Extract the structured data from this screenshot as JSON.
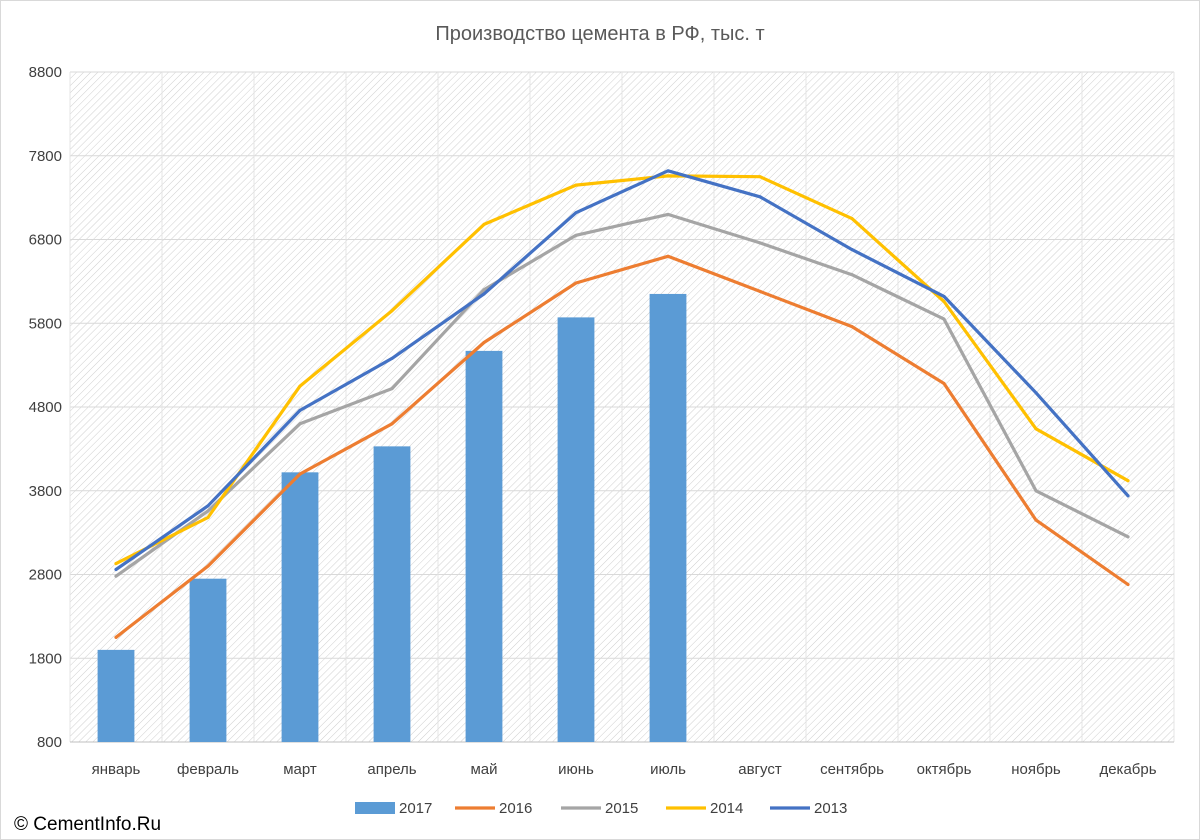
{
  "chart_data": {
    "type": "bar",
    "title": "Производство цемента в РФ, тыс. т",
    "xlabel": "",
    "ylabel": "",
    "ylim": [
      800,
      8800
    ],
    "yticks": [
      800,
      1800,
      2800,
      3800,
      4800,
      5800,
      6800,
      7800,
      8800
    ],
    "categories": [
      "январь",
      "февраль",
      "март",
      "апрель",
      "май",
      "июнь",
      "июль",
      "август",
      "сентябрь",
      "октябрь",
      "ноябрь",
      "декабрь"
    ],
    "grid": true,
    "legend_position": "bottom",
    "series": [
      {
        "name": "2017",
        "kind": "bar",
        "color": "#5B9BD5",
        "values": [
          1900,
          2750,
          4020,
          4330,
          5470,
          5870,
          6150,
          null,
          null,
          null,
          null,
          null
        ]
      },
      {
        "name": "2016",
        "kind": "line",
        "color": "#ED7D31",
        "values": [
          2050,
          2900,
          4000,
          4600,
          5570,
          6280,
          6600,
          6180,
          5760,
          5080,
          3450,
          2680
        ]
      },
      {
        "name": "2015",
        "kind": "line",
        "color": "#A5A5A5",
        "values": [
          2780,
          3560,
          4600,
          5020,
          6200,
          6850,
          7100,
          6760,
          6380,
          5850,
          3800,
          3250
        ]
      },
      {
        "name": "2014",
        "kind": "line",
        "color": "#FFC000",
        "values": [
          2930,
          3480,
          5050,
          5950,
          6980,
          7450,
          7560,
          7550,
          7050,
          6060,
          4540,
          3920
        ]
      },
      {
        "name": "2013",
        "kind": "line",
        "color": "#4472C4",
        "values": [
          2860,
          3620,
          4760,
          5380,
          6150,
          7120,
          7620,
          7310,
          6680,
          6120,
          4970,
          3740
        ]
      }
    ]
  },
  "footer": {
    "credit": "© CementInfo.Ru"
  }
}
